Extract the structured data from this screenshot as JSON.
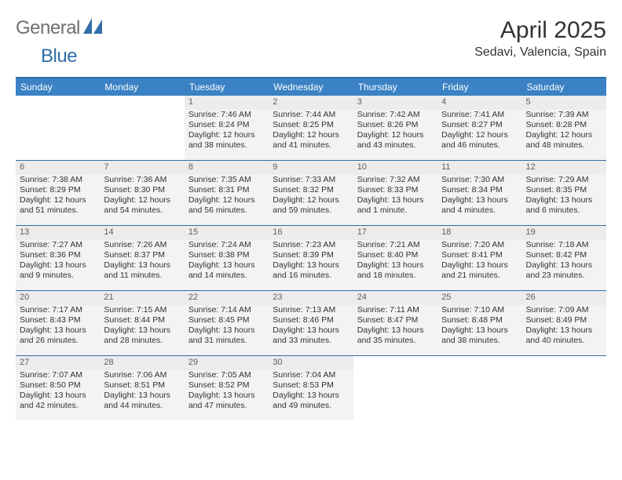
{
  "brand": {
    "word_a": "General",
    "word_b": "Blue"
  },
  "header": {
    "title": "April 2025",
    "location": "Sedavi, Valencia, Spain"
  },
  "colors": {
    "header_blue": "#3b82c4",
    "band_blue": "#2f6ea8",
    "row_grey": "#ececec",
    "cell_grey": "#f3f3f3",
    "text": "#333333",
    "logo_grey": "#6f6f6f"
  },
  "fontsizes": {
    "title": 30,
    "subtitle": 16,
    "dayhead": 12,
    "daynum": 11,
    "body": 10.5
  },
  "calendar": {
    "day_names": [
      "Sunday",
      "Monday",
      "Tuesday",
      "Wednesday",
      "Thursday",
      "Friday",
      "Saturday"
    ],
    "labels": {
      "sunrise": "Sunrise:",
      "sunset": "Sunset:",
      "daylight": "Daylight:"
    },
    "first_weekday_index": 2,
    "weeks": [
      [
        null,
        null,
        {
          "n": 1,
          "sunrise": "7:46 AM",
          "sunset": "8:24 PM",
          "daylight": "12 hours and 38 minutes."
        },
        {
          "n": 2,
          "sunrise": "7:44 AM",
          "sunset": "8:25 PM",
          "daylight": "12 hours and 41 minutes."
        },
        {
          "n": 3,
          "sunrise": "7:42 AM",
          "sunset": "8:26 PM",
          "daylight": "12 hours and 43 minutes."
        },
        {
          "n": 4,
          "sunrise": "7:41 AM",
          "sunset": "8:27 PM",
          "daylight": "12 hours and 46 minutes."
        },
        {
          "n": 5,
          "sunrise": "7:39 AM",
          "sunset": "8:28 PM",
          "daylight": "12 hours and 48 minutes."
        }
      ],
      [
        {
          "n": 6,
          "sunrise": "7:38 AM",
          "sunset": "8:29 PM",
          "daylight": "12 hours and 51 minutes."
        },
        {
          "n": 7,
          "sunrise": "7:36 AM",
          "sunset": "8:30 PM",
          "daylight": "12 hours and 54 minutes."
        },
        {
          "n": 8,
          "sunrise": "7:35 AM",
          "sunset": "8:31 PM",
          "daylight": "12 hours and 56 minutes."
        },
        {
          "n": 9,
          "sunrise": "7:33 AM",
          "sunset": "8:32 PM",
          "daylight": "12 hours and 59 minutes."
        },
        {
          "n": 10,
          "sunrise": "7:32 AM",
          "sunset": "8:33 PM",
          "daylight": "13 hours and 1 minute."
        },
        {
          "n": 11,
          "sunrise": "7:30 AM",
          "sunset": "8:34 PM",
          "daylight": "13 hours and 4 minutes."
        },
        {
          "n": 12,
          "sunrise": "7:29 AM",
          "sunset": "8:35 PM",
          "daylight": "13 hours and 6 minutes."
        }
      ],
      [
        {
          "n": 13,
          "sunrise": "7:27 AM",
          "sunset": "8:36 PM",
          "daylight": "13 hours and 9 minutes."
        },
        {
          "n": 14,
          "sunrise": "7:26 AM",
          "sunset": "8:37 PM",
          "daylight": "13 hours and 11 minutes."
        },
        {
          "n": 15,
          "sunrise": "7:24 AM",
          "sunset": "8:38 PM",
          "daylight": "13 hours and 14 minutes."
        },
        {
          "n": 16,
          "sunrise": "7:23 AM",
          "sunset": "8:39 PM",
          "daylight": "13 hours and 16 minutes."
        },
        {
          "n": 17,
          "sunrise": "7:21 AM",
          "sunset": "8:40 PM",
          "daylight": "13 hours and 18 minutes."
        },
        {
          "n": 18,
          "sunrise": "7:20 AM",
          "sunset": "8:41 PM",
          "daylight": "13 hours and 21 minutes."
        },
        {
          "n": 19,
          "sunrise": "7:18 AM",
          "sunset": "8:42 PM",
          "daylight": "13 hours and 23 minutes."
        }
      ],
      [
        {
          "n": 20,
          "sunrise": "7:17 AM",
          "sunset": "8:43 PM",
          "daylight": "13 hours and 26 minutes."
        },
        {
          "n": 21,
          "sunrise": "7:15 AM",
          "sunset": "8:44 PM",
          "daylight": "13 hours and 28 minutes."
        },
        {
          "n": 22,
          "sunrise": "7:14 AM",
          "sunset": "8:45 PM",
          "daylight": "13 hours and 31 minutes."
        },
        {
          "n": 23,
          "sunrise": "7:13 AM",
          "sunset": "8:46 PM",
          "daylight": "13 hours and 33 minutes."
        },
        {
          "n": 24,
          "sunrise": "7:11 AM",
          "sunset": "8:47 PM",
          "daylight": "13 hours and 35 minutes."
        },
        {
          "n": 25,
          "sunrise": "7:10 AM",
          "sunset": "8:48 PM",
          "daylight": "13 hours and 38 minutes."
        },
        {
          "n": 26,
          "sunrise": "7:09 AM",
          "sunset": "8:49 PM",
          "daylight": "13 hours and 40 minutes."
        }
      ],
      [
        {
          "n": 27,
          "sunrise": "7:07 AM",
          "sunset": "8:50 PM",
          "daylight": "13 hours and 42 minutes."
        },
        {
          "n": 28,
          "sunrise": "7:06 AM",
          "sunset": "8:51 PM",
          "daylight": "13 hours and 44 minutes."
        },
        {
          "n": 29,
          "sunrise": "7:05 AM",
          "sunset": "8:52 PM",
          "daylight": "13 hours and 47 minutes."
        },
        {
          "n": 30,
          "sunrise": "7:04 AM",
          "sunset": "8:53 PM",
          "daylight": "13 hours and 49 minutes."
        },
        null,
        null,
        null
      ]
    ]
  }
}
